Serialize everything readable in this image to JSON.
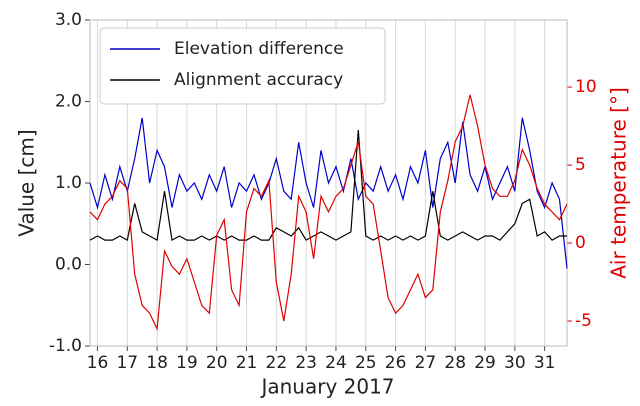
{
  "chart_data": {
    "type": "line",
    "xlabel": "January 2017",
    "ylabel": "Value [cm]",
    "y2label": "Air temperature [°]",
    "legend": "upper left",
    "grid": true,
    "xlim": [
      15.75,
      31.75
    ],
    "xticks": [
      16,
      17,
      18,
      19,
      20,
      21,
      22,
      23,
      24,
      25,
      26,
      27,
      28,
      29,
      30,
      31
    ],
    "ylim": [
      -1,
      3
    ],
    "yticks": [
      {
        "value": -1,
        "label": "-1.0"
      },
      {
        "value": 0,
        "label": "0.0"
      },
      {
        "value": 1,
        "label": "1.0"
      },
      {
        "value": 2,
        "label": "2.0"
      },
      {
        "value": 3,
        "label": "3.0"
      }
    ],
    "y2lim": [
      -6.6,
      14.3
    ],
    "y2ticks": [
      -5,
      0,
      5,
      10
    ],
    "y2color": "#e00000",
    "x": [
      15.75,
      16,
      16.25,
      16.5,
      16.75,
      17,
      17.25,
      17.5,
      17.75,
      18,
      18.25,
      18.5,
      18.75,
      19,
      19.25,
      19.5,
      19.75,
      20,
      20.25,
      20.5,
      20.75,
      21,
      21.25,
      21.5,
      21.75,
      22,
      22.25,
      22.5,
      22.75,
      23,
      23.25,
      23.5,
      23.75,
      24,
      24.25,
      24.5,
      24.75,
      25,
      25.25,
      25.5,
      25.75,
      26,
      26.25,
      26.5,
      26.75,
      27,
      27.25,
      27.5,
      27.75,
      28,
      28.25,
      28.5,
      28.75,
      29,
      29.25,
      29.5,
      29.75,
      30,
      30.25,
      30.5,
      30.75,
      31,
      31.25,
      31.5,
      31.75
    ],
    "series": [
      {
        "name": "Elevation difference",
        "color": "#0000cc",
        "in_legend": true,
        "values": [
          1.0,
          0.7,
          1.1,
          0.8,
          1.2,
          0.9,
          1.3,
          1.8,
          1.0,
          1.4,
          1.2,
          0.7,
          1.1,
          0.9,
          1.0,
          0.8,
          1.1,
          0.9,
          1.2,
          0.7,
          1.0,
          0.9,
          1.1,
          0.8,
          1.0,
          1.3,
          0.9,
          0.8,
          1.5,
          1.0,
          0.7,
          1.4,
          1.0,
          1.2,
          0.9,
          1.3,
          0.8,
          1.0,
          0.9,
          1.2,
          0.9,
          1.1,
          0.8,
          1.2,
          1.0,
          1.4,
          0.7,
          1.3,
          1.5,
          1.0,
          1.75,
          1.1,
          0.9,
          1.2,
          0.8,
          1.0,
          1.2,
          0.9,
          1.8,
          1.4,
          0.9,
          0.7,
          1.0,
          0.8,
          -0.05
        ]
      },
      {
        "name": "Alignment accuracy",
        "color": "#000000",
        "in_legend": true,
        "values": [
          0.3,
          0.35,
          0.3,
          0.3,
          0.35,
          0.3,
          0.75,
          0.4,
          0.35,
          0.3,
          0.9,
          0.3,
          0.35,
          0.3,
          0.3,
          0.35,
          0.3,
          0.35,
          0.3,
          0.35,
          0.3,
          0.3,
          0.35,
          0.3,
          0.3,
          0.45,
          0.4,
          0.35,
          0.45,
          0.3,
          0.35,
          0.4,
          0.35,
          0.3,
          0.35,
          0.4,
          1.65,
          0.35,
          0.3,
          0.35,
          0.3,
          0.35,
          0.3,
          0.35,
          0.3,
          0.35,
          0.9,
          0.35,
          0.3,
          0.35,
          0.4,
          0.35,
          0.3,
          0.35,
          0.35,
          0.3,
          0.4,
          0.5,
          0.75,
          0.8,
          0.35,
          0.4,
          0.3,
          0.35,
          0.35
        ]
      },
      {
        "color": "#e00000",
        "axis": "y2",
        "values": [
          2.0,
          1.5,
          2.5,
          3.0,
          4.0,
          3.5,
          -2.0,
          -4.0,
          -4.5,
          -5.5,
          -0.5,
          -1.5,
          -2.0,
          -1.0,
          -2.5,
          -4.0,
          -4.5,
          0.5,
          1.5,
          -3.0,
          -4.0,
          2.0,
          3.5,
          3.0,
          4.0,
          -2.5,
          -5.0,
          -2.0,
          3.0,
          2.0,
          -1.0,
          3.0,
          2.0,
          3.0,
          3.5,
          5.0,
          6.5,
          3.0,
          2.5,
          -0.5,
          -3.5,
          -4.5,
          -4.0,
          -3.0,
          -2.0,
          -3.5,
          -3.0,
          2.0,
          4.0,
          6.5,
          7.5,
          9.5,
          7.5,
          5.0,
          3.5,
          3.0,
          3.0,
          4.0,
          6.0,
          5.0,
          3.5,
          2.5,
          2.0,
          1.5,
          2.5
        ]
      }
    ]
  }
}
